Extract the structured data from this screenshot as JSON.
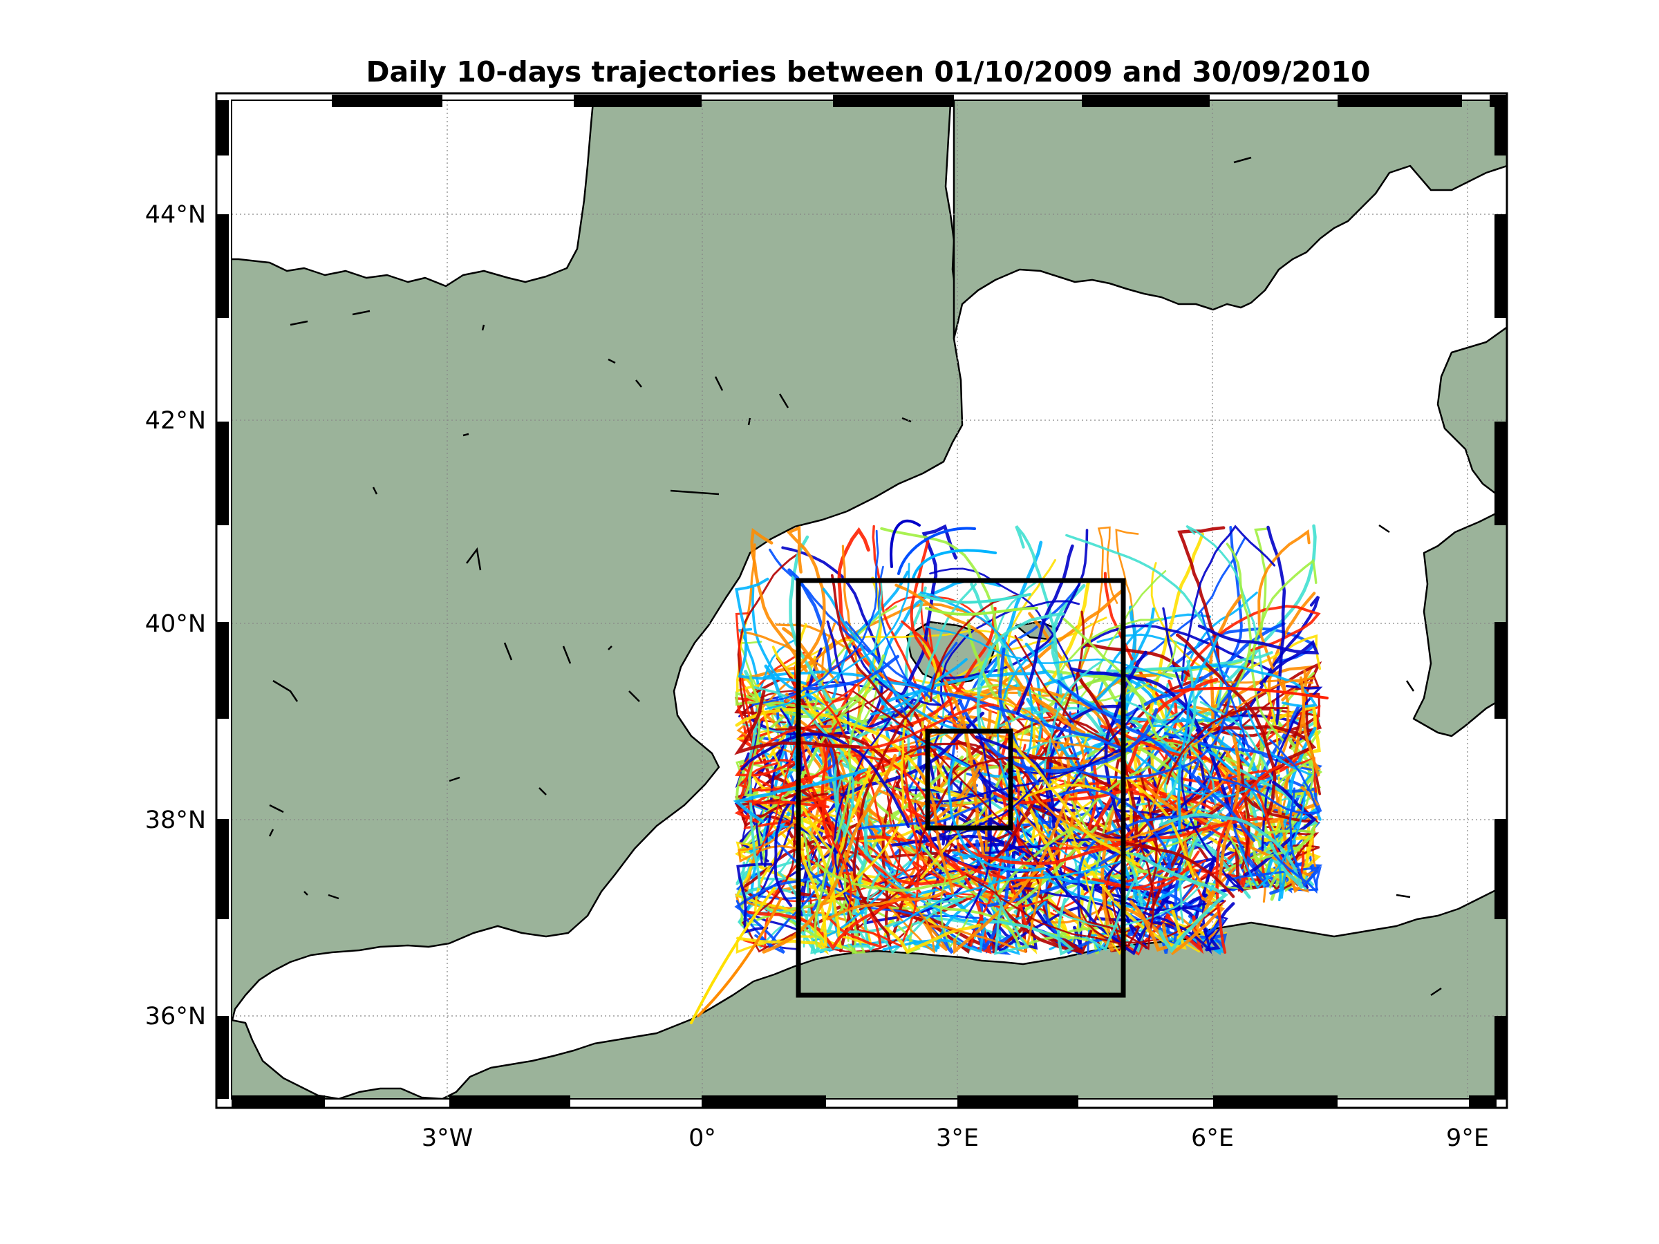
{
  "title": "Daily 10-days trajectories between 01/10/2009 and 30/09/2010",
  "axes": {
    "lon_range": [
      -5.5,
      9.5
    ],
    "lat_range": [
      35,
      45
    ],
    "lon_ticks": [
      {
        "value": -3,
        "label": "3°W"
      },
      {
        "value": 0,
        "label": "0°"
      },
      {
        "value": 3,
        "label": "3°E"
      },
      {
        "value": 6,
        "label": "6°E"
      },
      {
        "value": 9,
        "label": "9°E"
      }
    ],
    "lat_ticks": [
      {
        "value": 36,
        "label": "36°N"
      },
      {
        "value": 38,
        "label": "38°N"
      },
      {
        "value": 40,
        "label": "40°N"
      },
      {
        "value": 42,
        "label": "42°N"
      },
      {
        "value": 44,
        "label": "44°N"
      }
    ],
    "grid": "dotted"
  },
  "colors": {
    "land": "#9bb39a",
    "sea": "#ffffff",
    "coastline": "#000000",
    "frame": "#000000",
    "trajectory_palette": [
      "#0000c8",
      "#0050ff",
      "#00b4ff",
      "#40e0d0",
      "#a0f040",
      "#ffe000",
      "#ff8c00",
      "#ff2000",
      "#b40000"
    ]
  },
  "regions": [
    {
      "name": "outer-box",
      "lon_range": [
        1.1,
        4.9
      ],
      "lat_range": [
        36.2,
        40.4
      ]
    },
    {
      "name": "inner-box",
      "lon_range": [
        2.6,
        3.6
      ],
      "lat_range": [
        37.9,
        38.9
      ]
    }
  ]
}
